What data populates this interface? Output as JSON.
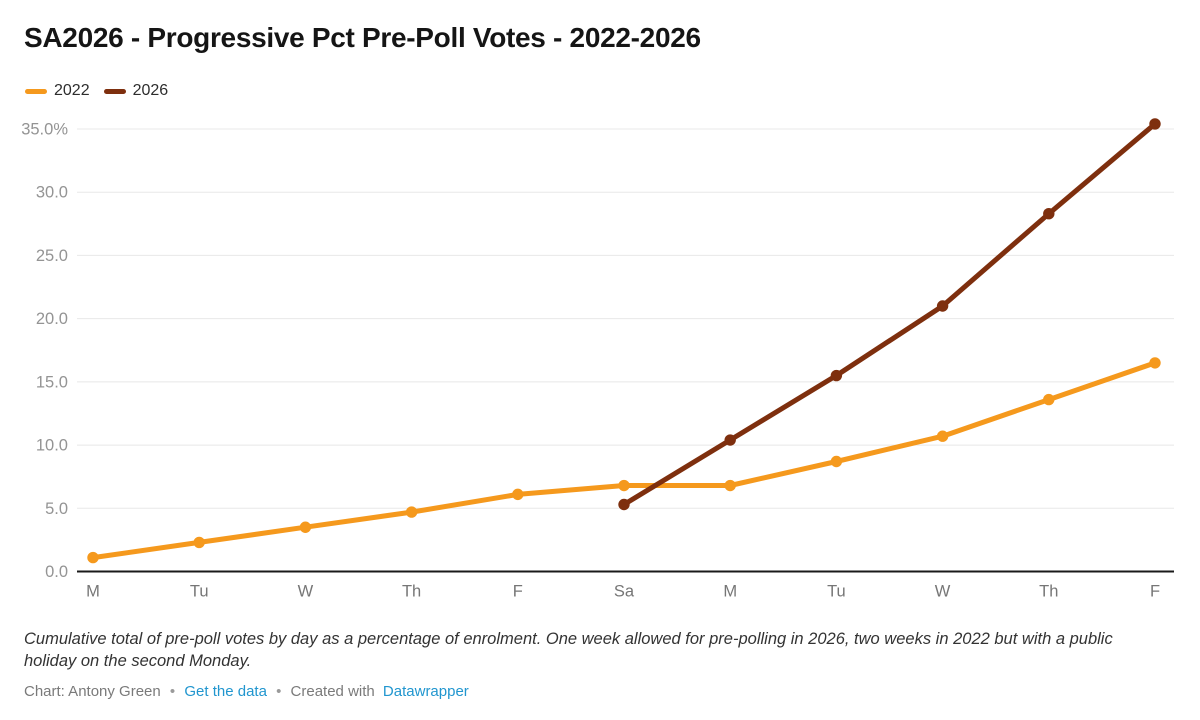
{
  "title": "SA2026 - Progressive Pct Pre-Poll Votes - 2022-2026",
  "legend": [
    {
      "label": "2022",
      "color": "#F5991D"
    },
    {
      "label": "2026",
      "color": "#7E2F0E"
    }
  ],
  "chart_data": {
    "type": "line",
    "title": "SA2026 - Progressive Pct Pre-Poll Votes - 2022-2026",
    "xlabel": "",
    "ylabel": "",
    "categories": [
      "M",
      "Tu",
      "W",
      "Th",
      "F",
      "Sa",
      "M",
      "Tu",
      "W",
      "Th",
      "F"
    ],
    "series": [
      {
        "name": "2022",
        "color": "#F5991D",
        "values": [
          1.1,
          2.3,
          3.5,
          4.7,
          6.1,
          6.8,
          6.8,
          8.7,
          10.7,
          13.6,
          16.5
        ]
      },
      {
        "name": "2026",
        "color": "#7E2F0E",
        "values": [
          null,
          null,
          null,
          null,
          null,
          5.3,
          10.4,
          15.5,
          21.0,
          28.3,
          35.4
        ]
      }
    ],
    "ylim": [
      0,
      35
    ],
    "yticks": [
      {
        "v": 0,
        "label": "0.0"
      },
      {
        "v": 5,
        "label": "5.0"
      },
      {
        "v": 10,
        "label": "10.0"
      },
      {
        "v": 15,
        "label": "15.0"
      },
      {
        "v": 20,
        "label": "20.0"
      },
      {
        "v": 25,
        "label": "25.0"
      },
      {
        "v": 30,
        "label": "30.0"
      },
      {
        "v": 35,
        "label": "35.0%"
      }
    ],
    "grid": "horizontal",
    "legend_position": "top-left"
  },
  "note": "Cumulative total of pre-poll votes by day as a percentage of enrolment. One week allowed for pre-polling in 2026, two weeks in 2022 but with a public holiday on the second Monday.",
  "byline": {
    "credit": "Chart: Antony Green",
    "separator": "•",
    "get_data_label": "Get the data",
    "created_with": "Created with",
    "datawrapper_label": "Datawrapper"
  },
  "colors": {
    "link": "#2196cf",
    "gridline": "#e8e8e8",
    "axis": "#1a1a1a",
    "title_text": "#151515",
    "note_text": "#333333",
    "byline_text": "#7a7a7a"
  }
}
